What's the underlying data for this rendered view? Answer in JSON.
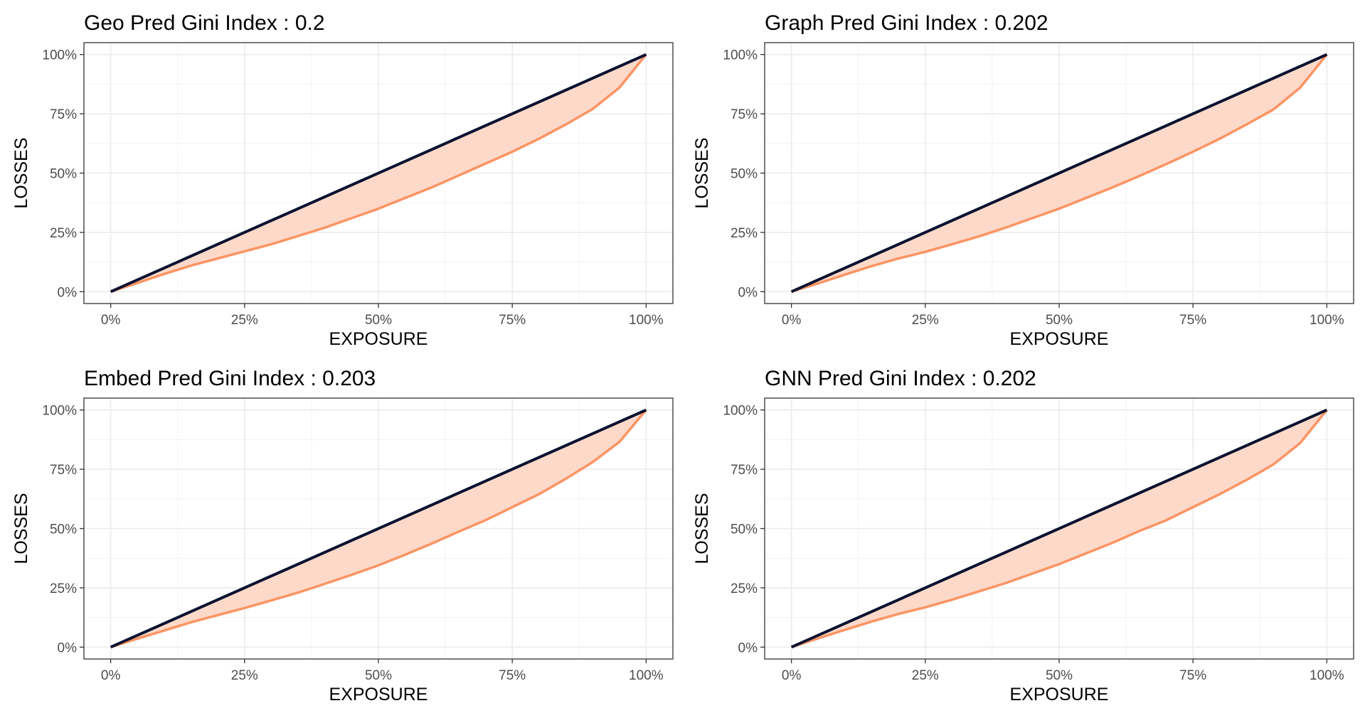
{
  "chart_data": [
    {
      "type": "area",
      "title": "Geo Pred Gini Index : 0.2",
      "xlabel": "EXPOSURE",
      "ylabel": "LOSSES",
      "xlim": [
        0,
        1
      ],
      "ylim": [
        0,
        1
      ],
      "xticks": [
        "0%",
        "25%",
        "50%",
        "75%",
        "100%"
      ],
      "yticks": [
        "0%",
        "25%",
        "50%",
        "75%",
        "100%"
      ],
      "grid": true,
      "series": [
        {
          "x": [
            0,
            0.05,
            0.1,
            0.15,
            0.2,
            0.25,
            0.3,
            0.35,
            0.4,
            0.45,
            0.5,
            0.55,
            0.6,
            0.65,
            0.7,
            0.75,
            0.8,
            0.85,
            0.9,
            0.95,
            1.0
          ],
          "y": [
            0,
            0.037,
            0.075,
            0.11,
            0.14,
            0.17,
            0.2,
            0.235,
            0.27,
            0.31,
            0.35,
            0.395,
            0.44,
            0.49,
            0.54,
            0.59,
            0.645,
            0.705,
            0.77,
            0.86,
            1.0
          ]
        },
        {
          "x": [
            0,
            1
          ],
          "y": [
            0,
            1
          ]
        }
      ]
    },
    {
      "type": "area",
      "title": "Graph Pred Gini Index : 0.202",
      "xlabel": "EXPOSURE",
      "ylabel": "LOSSES",
      "xlim": [
        0,
        1
      ],
      "ylim": [
        0,
        1
      ],
      "xticks": [
        "0%",
        "25%",
        "50%",
        "75%",
        "100%"
      ],
      "yticks": [
        "0%",
        "25%",
        "50%",
        "75%",
        "100%"
      ],
      "grid": true,
      "series": [
        {
          "x": [
            0,
            0.05,
            0.1,
            0.15,
            0.2,
            0.25,
            0.3,
            0.35,
            0.4,
            0.45,
            0.5,
            0.55,
            0.6,
            0.65,
            0.7,
            0.75,
            0.8,
            0.85,
            0.9,
            0.95,
            1.0
          ],
          "y": [
            0,
            0.035,
            0.072,
            0.108,
            0.14,
            0.168,
            0.2,
            0.233,
            0.27,
            0.31,
            0.35,
            0.395,
            0.44,
            0.488,
            0.538,
            0.59,
            0.645,
            0.705,
            0.768,
            0.86,
            1.0
          ]
        },
        {
          "x": [
            0,
            1
          ],
          "y": [
            0,
            1
          ]
        }
      ]
    },
    {
      "type": "area",
      "title": "Embed Pred Gini Index : 0.203",
      "xlabel": "EXPOSURE",
      "ylabel": "LOSSES",
      "xlim": [
        0,
        1
      ],
      "ylim": [
        0,
        1
      ],
      "xticks": [
        "0%",
        "25%",
        "50%",
        "75%",
        "100%"
      ],
      "yticks": [
        "0%",
        "25%",
        "50%",
        "75%",
        "100%"
      ],
      "grid": true,
      "series": [
        {
          "x": [
            0,
            0.05,
            0.1,
            0.15,
            0.2,
            0.25,
            0.3,
            0.35,
            0.4,
            0.45,
            0.5,
            0.55,
            0.6,
            0.65,
            0.7,
            0.75,
            0.8,
            0.85,
            0.9,
            0.95,
            1.0
          ],
          "y": [
            0,
            0.036,
            0.07,
            0.105,
            0.135,
            0.165,
            0.197,
            0.23,
            0.267,
            0.305,
            0.345,
            0.39,
            0.437,
            0.487,
            0.535,
            0.59,
            0.645,
            0.71,
            0.78,
            0.865,
            1.0
          ]
        },
        {
          "x": [
            0,
            1
          ],
          "y": [
            0,
            1
          ]
        }
      ]
    },
    {
      "type": "area",
      "title": "GNN Pred Gini Index : 0.202",
      "xlabel": "EXPOSURE",
      "ylabel": "LOSSES",
      "xlim": [
        0,
        1
      ],
      "ylim": [
        0,
        1
      ],
      "xticks": [
        "0%",
        "25%",
        "50%",
        "75%",
        "100%"
      ],
      "yticks": [
        "0%",
        "25%",
        "50%",
        "75%",
        "100%"
      ],
      "grid": true,
      "series": [
        {
          "x": [
            0,
            0.05,
            0.1,
            0.15,
            0.2,
            0.25,
            0.3,
            0.35,
            0.4,
            0.45,
            0.5,
            0.55,
            0.6,
            0.65,
            0.7,
            0.75,
            0.8,
            0.85,
            0.9,
            0.95,
            1.0
          ],
          "y": [
            0,
            0.037,
            0.073,
            0.108,
            0.14,
            0.168,
            0.2,
            0.235,
            0.27,
            0.31,
            0.35,
            0.395,
            0.44,
            0.49,
            0.535,
            0.59,
            0.645,
            0.705,
            0.77,
            0.86,
            1.0
          ]
        },
        {
          "x": [
            0,
            1
          ],
          "y": [
            0,
            1
          ]
        }
      ]
    }
  ],
  "colors": {
    "lorenz_line": "#fc9463",
    "lorenz_fill": "#fdd7c6",
    "equality_line": "#0b1230",
    "grid": "#ebebeb",
    "frame": "#333333"
  }
}
